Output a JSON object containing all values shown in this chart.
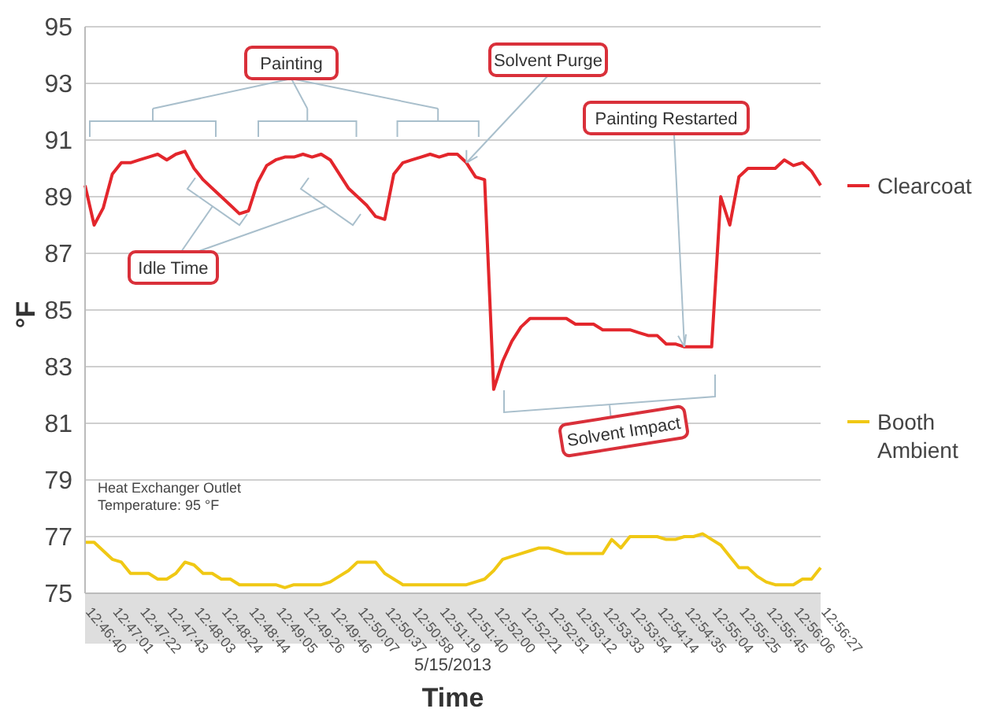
{
  "chart_data": {
    "type": "line",
    "xlabel": "Time",
    "ylabel": "°F",
    "categories": [
      "12:46:40",
      null,
      null,
      "12:47:01",
      null,
      null,
      "12:47:22",
      null,
      null,
      "12:47:43",
      null,
      null,
      "12:48:03",
      null,
      null,
      "12:48:24",
      null,
      null,
      "12:48:44",
      null,
      null,
      "12:49:05",
      null,
      null,
      "12:49:26",
      null,
      null,
      "12:49:46",
      null,
      null,
      "12:50:07",
      null,
      null,
      "12:50:37",
      null,
      null,
      "12:50:58",
      null,
      null,
      "12:51:19",
      null,
      null,
      "12:51:40",
      null,
      null,
      "12:52:00",
      null,
      null,
      "12:52:21",
      null,
      null,
      "12:52:51",
      null,
      null,
      "12:53:12",
      null,
      null,
      "12:53:33",
      null,
      null,
      "12:53:54",
      null,
      null,
      "12:54:14",
      null,
      null,
      "12:54:35",
      null,
      null,
      "12:55:04",
      null,
      null,
      "12:55:25",
      null,
      null,
      "12:55:45",
      null,
      null,
      "12:56:06",
      null,
      null,
      "12:56:27"
    ],
    "series": [
      {
        "name": "Clearcoat",
        "color": "#e3262c",
        "values": [
          89.4,
          88.0,
          88.6,
          89.8,
          90.2,
          90.2,
          90.3,
          90.4,
          90.5,
          90.3,
          90.5,
          90.6,
          90.0,
          89.6,
          89.3,
          89.0,
          88.7,
          88.4,
          88.5,
          89.5,
          90.1,
          90.3,
          90.4,
          90.4,
          90.5,
          90.4,
          90.5,
          90.3,
          89.8,
          89.3,
          89.0,
          88.7,
          88.3,
          88.2,
          89.8,
          90.2,
          90.3,
          90.4,
          90.5,
          90.4,
          90.5,
          90.5,
          90.2,
          89.7,
          89.6,
          82.2,
          83.2,
          83.9,
          84.4,
          84.7,
          84.7,
          84.7,
          84.7,
          84.7,
          84.5,
          84.5,
          84.5,
          84.3,
          84.3,
          84.3,
          84.3,
          84.2,
          84.1,
          84.1,
          83.8,
          83.8,
          83.7,
          83.7,
          83.7,
          83.7,
          89.0,
          88.0,
          89.7,
          90.0,
          90.0,
          90.0,
          90.0,
          90.3,
          90.1,
          90.2,
          89.9,
          89.4
        ]
      },
      {
        "name": "Booth Ambient",
        "color": "#f0c814",
        "values": [
          76.8,
          76.8,
          76.5,
          76.2,
          76.1,
          75.7,
          75.7,
          75.7,
          75.5,
          75.5,
          75.7,
          76.1,
          76.0,
          75.7,
          75.7,
          75.5,
          75.5,
          75.3,
          75.3,
          75.3,
          75.3,
          75.3,
          75.2,
          75.3,
          75.3,
          75.3,
          75.3,
          75.4,
          75.6,
          75.8,
          76.1,
          76.1,
          76.1,
          75.7,
          75.5,
          75.3,
          75.3,
          75.3,
          75.3,
          75.3,
          75.3,
          75.3,
          75.3,
          75.4,
          75.5,
          75.8,
          76.2,
          76.3,
          76.4,
          76.5,
          76.6,
          76.6,
          76.5,
          76.4,
          76.4,
          76.4,
          76.4,
          76.4,
          76.9,
          76.6,
          77.0,
          77.0,
          77.0,
          77.0,
          76.9,
          76.9,
          77.0,
          77.0,
          77.1,
          76.9,
          76.7,
          76.3,
          75.9,
          75.9,
          75.6,
          75.4,
          75.3,
          75.3,
          75.3,
          75.5,
          75.5,
          75.9
        ]
      }
    ],
    "ylim": [
      75,
      95
    ],
    "yticks": [
      75,
      77,
      79,
      81,
      83,
      85,
      87,
      89,
      91,
      93,
      95
    ],
    "grid": "y",
    "legend": "right",
    "annotations": [
      "Painting",
      "Idle Time",
      {
        "text": "Solvent Purge",
        "x": "12:51:40",
        "y": 90.2
      },
      {
        "text": "Painting Restarted",
        "x": "12:54:35",
        "y": 83.7
      },
      "Solvent Impact",
      "Heat Exchanger Outlet Temperature: 95 °F",
      "5/15/2013"
    ]
  }
}
